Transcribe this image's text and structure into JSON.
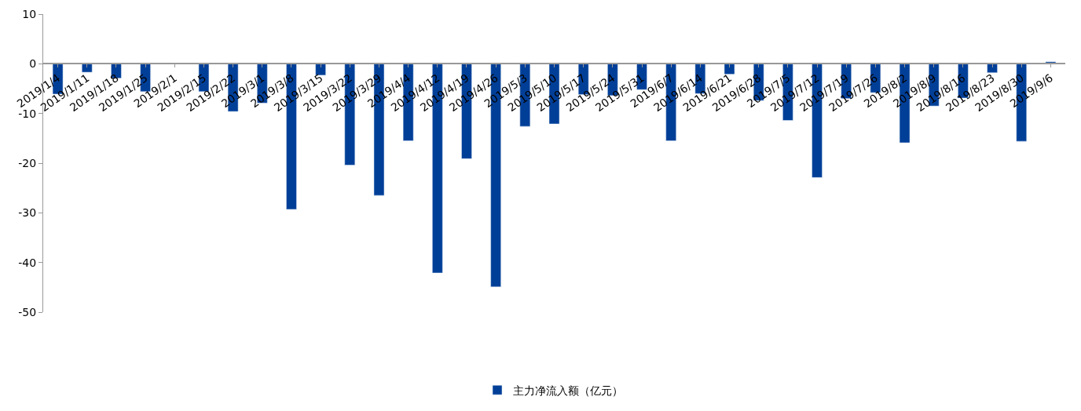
{
  "chart_data": {
    "type": "bar",
    "categories": [
      "2019/1/4",
      "2019/1/11",
      "2019/1/18",
      "2019/1/25",
      "2019/2/1",
      "2019/2/15",
      "2019/2/22",
      "2019/3/1",
      "2019/3/8",
      "2019/3/15",
      "2019/3/22",
      "2019/3/29",
      "2019/4/4",
      "2019/4/12",
      "2019/4/19",
      "2019/4/26",
      "2019/5/3",
      "2019/5/10",
      "2019/5/17",
      "2019/5/24",
      "2019/5/31",
      "2019/6/7",
      "2019/6/14",
      "2019/6/21",
      "2019/6/28",
      "2019/7/5",
      "2019/7/12",
      "2019/7/19",
      "2019/7/26",
      "2019/8/2",
      "2019/8/9",
      "2019/8/16",
      "2019/8/23",
      "2019/8/30",
      "2019/9/6"
    ],
    "series": [
      {
        "name": "主力净流入额（亿元）",
        "color": "#003f98",
        "values": [
          -6.1,
          -1.7,
          -2.9,
          -5.6,
          null,
          -5.6,
          -9.6,
          -7.9,
          -29.3,
          -2.3,
          -20.4,
          -26.5,
          -15.5,
          -42.1,
          -19.1,
          -44.9,
          -12.6,
          -12.1,
          -6.2,
          -6.4,
          -5.2,
          -15.5,
          -6.0,
          -2.1,
          -7.4,
          -11.4,
          -22.9,
          -7.0,
          -5.8,
          -15.9,
          -8.5,
          -6.9,
          -1.8,
          -15.6,
          0.4
        ]
      }
    ],
    "ylim": [
      -50,
      10
    ],
    "yticks": [
      -50,
      -40,
      -30,
      -20,
      -10,
      0,
      10
    ],
    "legend": "bottom"
  }
}
